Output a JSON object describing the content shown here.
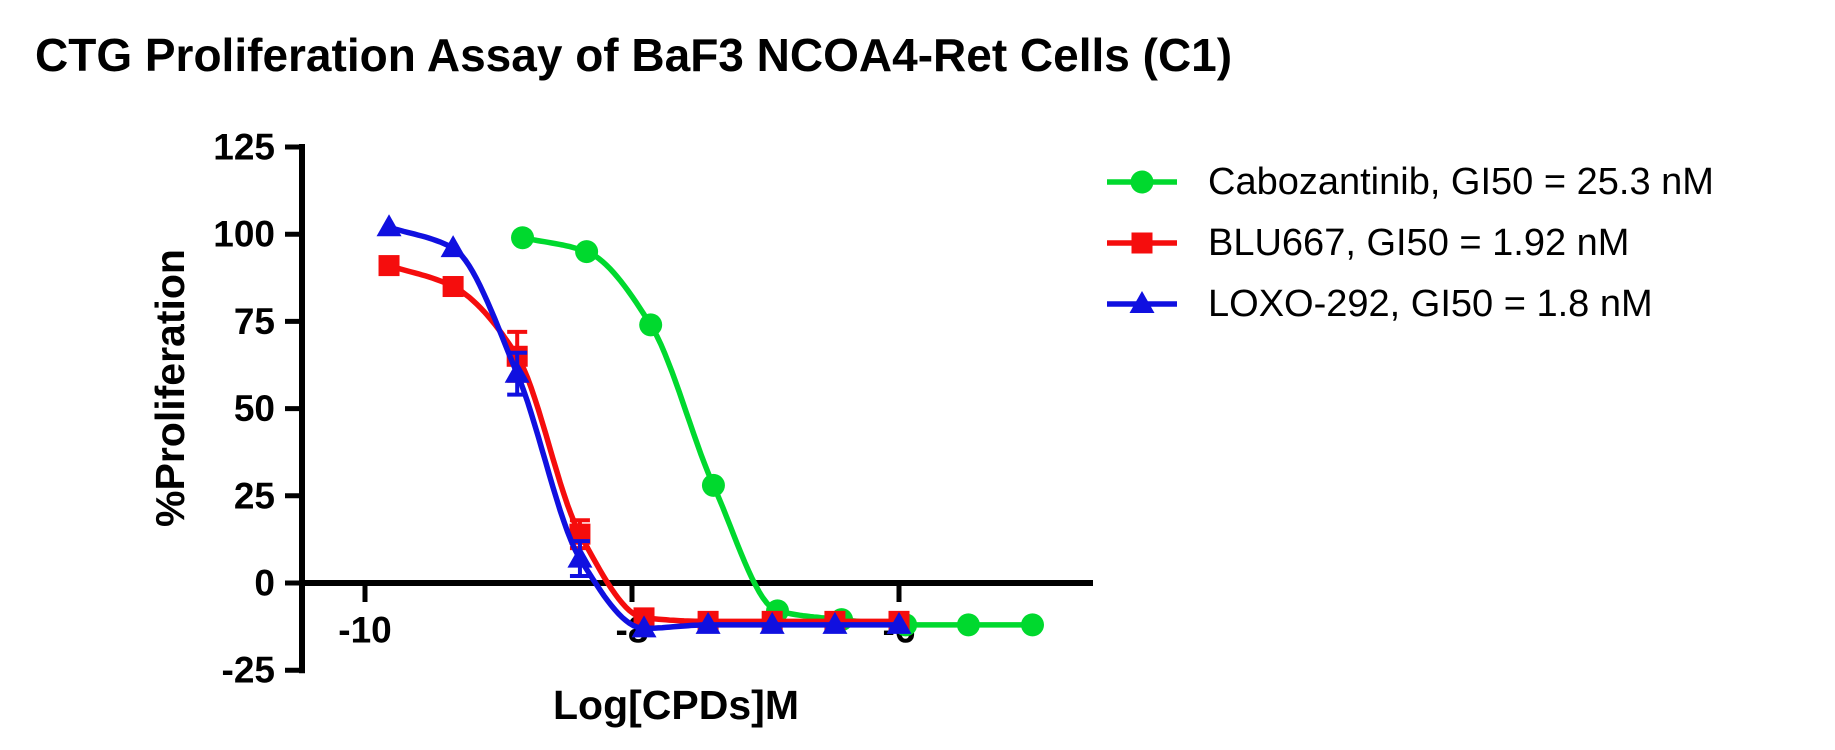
{
  "title": "CTG Proliferation Assay of BaF3 NCOA4-Ret Cells (C1)",
  "chart_data": {
    "type": "line",
    "title": "CTG Proliferation Assay of BaF3 NCOA4-Ret Cells (C1)",
    "xlabel": "Log[CPDs]M",
    "ylabel": "%Proliferation",
    "xlim": [
      -10.5,
      -4.6
    ],
    "ylim": [
      -25,
      125
    ],
    "x_ticks": [
      -10,
      -8,
      -6
    ],
    "y_ticks": [
      125,
      100,
      75,
      50,
      25,
      0,
      -25
    ],
    "grid": false,
    "legend_position": "right",
    "axis_color": "#000000",
    "series": [
      {
        "name": "Cabozantinib, GI50 = 25.3 nM",
        "compound": "Cabozantinib",
        "gi50": "25.3 nM",
        "color": "#00d92e",
        "marker": "circle",
        "x": [
          -8.82,
          -8.34,
          -7.86,
          -7.39,
          -6.91,
          -6.43,
          -5.95,
          -5.48,
          -5.0
        ],
        "y": [
          99,
          95,
          74,
          28,
          -8,
          -10.5,
          -12,
          -12,
          -12
        ],
        "y_err": [
          0,
          0,
          0,
          0,
          0,
          0,
          0,
          0,
          0
        ]
      },
      {
        "name": "BLU667, GI50 = 1.92 nM",
        "compound": "BLU667",
        "gi50": "1.92 nM",
        "color": "#f50d0d",
        "marker": "square",
        "x": [
          -9.82,
          -9.34,
          -8.86,
          -8.39,
          -7.91,
          -7.43,
          -6.95,
          -6.48,
          -6.0
        ],
        "y": [
          91,
          85,
          65,
          14,
          -10,
          -11,
          -11,
          -11,
          -11
        ],
        "y_err": [
          0,
          0,
          7,
          4,
          0,
          0,
          0,
          0,
          0
        ]
      },
      {
        "name": "LOXO-292, GI50 = 1.8 nM",
        "compound": "LOXO-292",
        "gi50": "1.8 nM",
        "color": "#1010e0",
        "marker": "triangle",
        "x": [
          -9.82,
          -9.34,
          -8.86,
          -8.39,
          -7.91,
          -7.43,
          -6.95,
          -6.48,
          -6.0
        ],
        "y": [
          102,
          96,
          60,
          7,
          -13,
          -12,
          -12,
          -12,
          -12
        ],
        "y_err": [
          0,
          0,
          6,
          5,
          0,
          0,
          0,
          0,
          0
        ]
      }
    ]
  }
}
